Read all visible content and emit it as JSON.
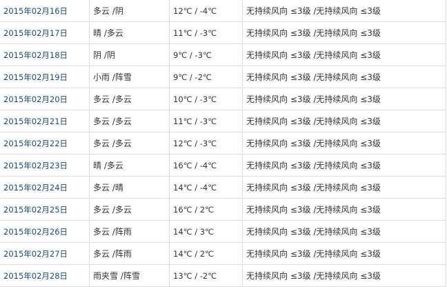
{
  "colors": {
    "link": "#1a4a7a",
    "text": "#333333",
    "border": "#dcdcdc"
  },
  "rows": [
    {
      "date": "2015年02月16日",
      "weather": "多云 /阴",
      "temp": "12℃ / -4℃",
      "wind": "无持续风向 ≤3级 /无持续风向 ≤3级"
    },
    {
      "date": "2015年02月17日",
      "weather": "晴 /多云",
      "temp": "11℃ / -3℃",
      "wind": "无持续风向 ≤3级 /无持续风向 ≤3级"
    },
    {
      "date": "2015年02月18日",
      "weather": "阴 /阴",
      "temp": "9℃ / -3℃",
      "wind": "无持续风向 ≤3级 /无持续风向 ≤3级"
    },
    {
      "date": "2015年02月19日",
      "weather": "小雨 /阵雪",
      "temp": "9℃ / -2℃",
      "wind": "无持续风向 ≤3级 /无持续风向 ≤3级"
    },
    {
      "date": "2015年02月20日",
      "weather": "多云 /多云",
      "temp": "10℃ / -3℃",
      "wind": "无持续风向 ≤3级 /无持续风向 ≤3级"
    },
    {
      "date": "2015年02月21日",
      "weather": "多云 /多云",
      "temp": "11℃ / -3℃",
      "wind": "无持续风向 ≤3级 /无持续风向 ≤3级"
    },
    {
      "date": "2015年02月22日",
      "weather": "多云 /多云",
      "temp": "12℃ / -3℃",
      "wind": "无持续风向 ≤3级 /无持续风向 ≤3级"
    },
    {
      "date": "2015年02月23日",
      "weather": "晴 /多云",
      "temp": "16℃ / -4℃",
      "wind": "无持续风向 ≤3级 /无持续风向 ≤3级"
    },
    {
      "date": "2015年02月24日",
      "weather": "多云 /晴",
      "temp": "14℃ / -4℃",
      "wind": "无持续风向 ≤3级 /无持续风向 ≤3级"
    },
    {
      "date": "2015年02月25日",
      "weather": "多云 /多云",
      "temp": "16℃ / 2℃",
      "wind": "无持续风向 ≤3级 /无持续风向 ≤3级"
    },
    {
      "date": "2015年02月26日",
      "weather": "多云 /阵雨",
      "temp": "14℃ / 3℃",
      "wind": "无持续风向 ≤3级 /无持续风向 ≤3级"
    },
    {
      "date": "2015年02月27日",
      "weather": "多云 /阵雨",
      "temp": "14℃ / 2℃",
      "wind": "无持续风向 ≤3级 /无持续风向 ≤3级"
    },
    {
      "date": "2015年02月28日",
      "weather": "雨夹雪 /阵雪",
      "temp": "13℃ / -2℃",
      "wind": "无持续风向 ≤3级 /无持续风向 ≤3级"
    }
  ]
}
